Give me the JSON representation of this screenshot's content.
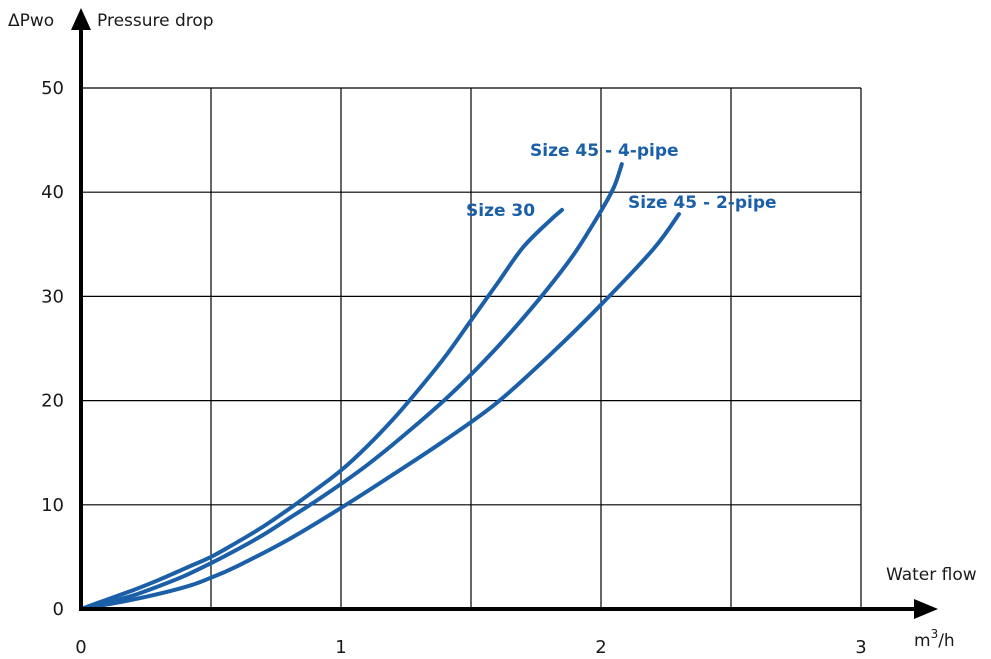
{
  "chart_data": {
    "type": "line",
    "ylabel_symbol": "ΔPwo",
    "ylabel": "Pressure drop",
    "xlabel": "Water flow",
    "xunit_base": "m",
    "xunit_sup": "3",
    "xunit_rest": "/h",
    "xlim": [
      0,
      3
    ],
    "ylim": [
      0,
      50
    ],
    "x_ticks": [
      0,
      1,
      2,
      3
    ],
    "x_tick_labels": [
      "0",
      "1",
      "2",
      "3"
    ],
    "x_grid": [
      0.5,
      1,
      1.5,
      2,
      2.5,
      3
    ],
    "y_ticks": [
      0,
      10,
      20,
      30,
      40,
      50
    ],
    "y_tick_labels": [
      "0",
      "10",
      "20",
      "30",
      "40",
      "50"
    ],
    "grid": true,
    "series_color": "#1a5fa8",
    "series": [
      {
        "name": "Size 30",
        "x": [
          0,
          0.1,
          0.2,
          0.3,
          0.4,
          0.5,
          0.6,
          0.7,
          0.8,
          0.9,
          1.0,
          1.1,
          1.2,
          1.3,
          1.4,
          1.5,
          1.6,
          1.7,
          1.8,
          1.85
        ],
        "y": [
          0,
          0.9,
          1.8,
          2.8,
          3.9,
          5.0,
          6.4,
          7.9,
          9.6,
          11.4,
          13.3,
          15.6,
          18.2,
          21.1,
          24.2,
          27.7,
          31.2,
          34.7,
          37.2,
          38.3
        ]
      },
      {
        "name": "Size 45 - 4-pipe",
        "x": [
          0,
          0.1,
          0.2,
          0.3,
          0.4,
          0.5,
          0.6,
          0.7,
          0.8,
          0.9,
          1.0,
          1.1,
          1.2,
          1.3,
          1.4,
          1.5,
          1.6,
          1.7,
          1.8,
          1.9,
          2.0,
          2.05,
          2.08
        ],
        "y": [
          0,
          0.6,
          1.3,
          2.2,
          3.2,
          4.4,
          5.7,
          7.1,
          8.7,
          10.3,
          12.0,
          13.8,
          15.8,
          17.9,
          20.1,
          22.5,
          25.1,
          27.9,
          30.9,
          34.2,
          38.2,
          40.5,
          42.7
        ]
      },
      {
        "name": "Size 45 - 2-pipe",
        "x": [
          0,
          0.2,
          0.4,
          0.5,
          0.6,
          0.8,
          1.0,
          1.2,
          1.4,
          1.6,
          1.8,
          2.0,
          2.2,
          2.3
        ],
        "y": [
          0,
          0.9,
          2.1,
          3.0,
          4.1,
          6.7,
          9.7,
          12.9,
          16.2,
          19.8,
          24.3,
          29.2,
          34.5,
          37.9
        ]
      }
    ]
  }
}
